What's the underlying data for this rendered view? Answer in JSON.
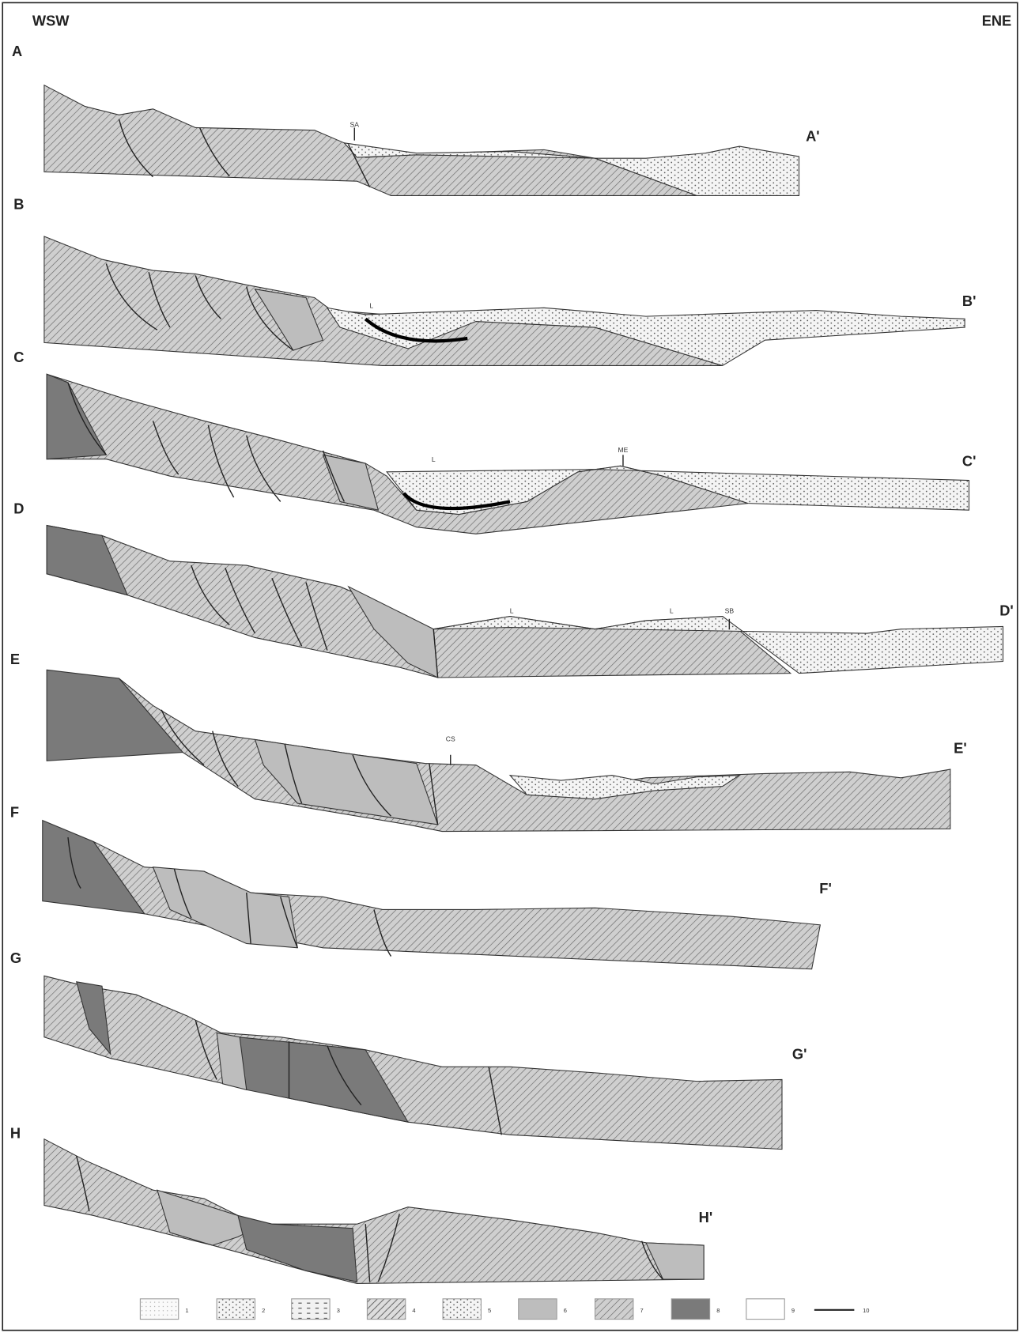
{
  "orientation": {
    "left": "WSW",
    "right": "ENE"
  },
  "sections": [
    {
      "start": "A",
      "end": "A'",
      "labels": [
        "SA"
      ]
    },
    {
      "start": "B",
      "end": "B'",
      "labels": [
        "L"
      ]
    },
    {
      "start": "C",
      "end": "C'",
      "labels": [
        "L",
        "ME"
      ]
    },
    {
      "start": "D",
      "end": "D'",
      "labels": [
        "L",
        "L",
        "SB"
      ]
    },
    {
      "start": "E",
      "end": "E'",
      "labels": [
        "CS"
      ]
    },
    {
      "start": "F",
      "end": "F'",
      "labels": []
    },
    {
      "start": "G",
      "end": "G'",
      "labels": []
    },
    {
      "start": "H",
      "end": "H'",
      "labels": []
    }
  ],
  "legend": [
    "1",
    "2",
    "3",
    "4",
    "5",
    "6",
    "7",
    "8",
    "9",
    "10"
  ]
}
